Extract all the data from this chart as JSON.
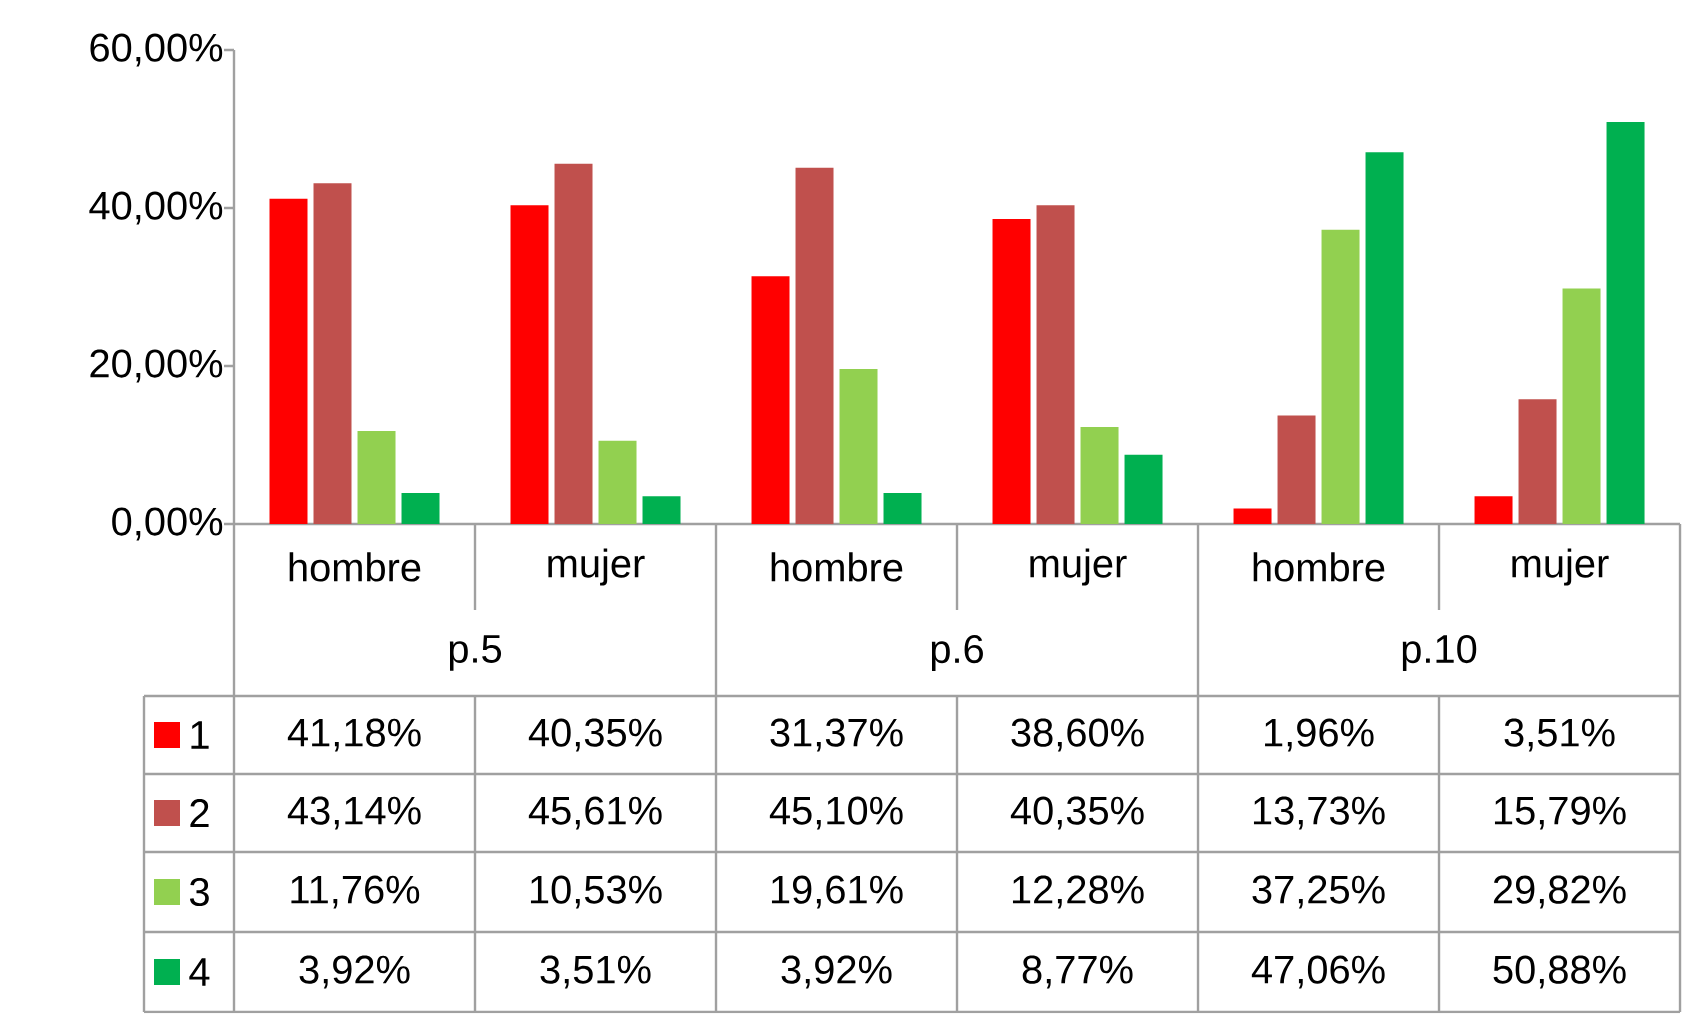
{
  "chart_data": {
    "type": "bar",
    "categories": [
      "hombre",
      "mujer",
      "hombre",
      "mujer",
      "hombre",
      "mujer"
    ],
    "annotations": [
      "p.5",
      "p.6",
      "p.10"
    ],
    "ylim": [
      0,
      60
    ],
    "yticks": [
      {
        "value": 0,
        "label": "0,00%"
      },
      {
        "value": 20,
        "label": "20,00%"
      },
      {
        "value": 40,
        "label": "40,00%"
      },
      {
        "value": 60,
        "label": "60,00%"
      }
    ],
    "legend": "bottom",
    "series": [
      {
        "name": "1",
        "color": "#ff0000",
        "values": [
          41.18,
          40.35,
          31.37,
          38.6,
          1.96,
          3.51
        ],
        "value_labels": [
          "41,18%",
          "40,35%",
          "31,37%",
          "38,60%",
          "1,96%",
          "3,51%"
        ]
      },
      {
        "name": "2",
        "color": "#c0504d",
        "values": [
          43.14,
          45.61,
          45.1,
          40.35,
          13.73,
          15.79
        ],
        "value_labels": [
          "43,14%",
          "45,61%",
          "45,10%",
          "40,35%",
          "13,73%",
          "15,79%"
        ]
      },
      {
        "name": "3",
        "color": "#92d050",
        "values": [
          11.76,
          10.53,
          19.61,
          12.28,
          37.25,
          29.82
        ],
        "value_labels": [
          "11,76%",
          "10,53%",
          "19,61%",
          "12,28%",
          "37,25%",
          "29,82%"
        ]
      },
      {
        "name": "4",
        "color": "#00b050",
        "values": [
          3.92,
          3.51,
          3.92,
          8.77,
          47.06,
          50.88
        ],
        "value_labels": [
          "3,92%",
          "3,51%",
          "3,92%",
          "8,77%",
          "47,06%",
          "50,88%"
        ]
      }
    ]
  }
}
